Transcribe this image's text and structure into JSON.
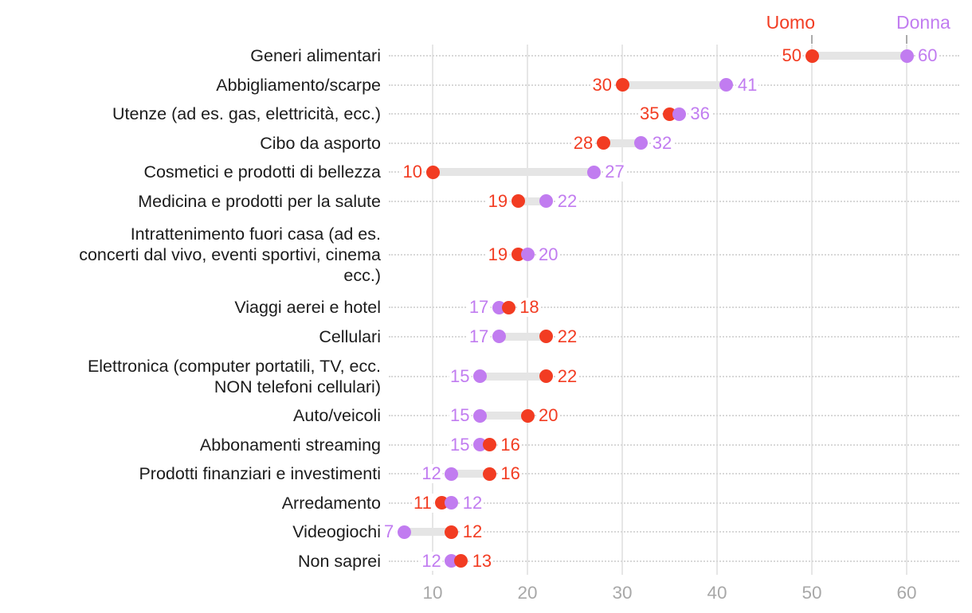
{
  "colors": {
    "uomo": "#f23c22",
    "donna": "#c17cf0",
    "gridline": "#e6e6e6",
    "dotted_line": "#d8d8d8",
    "connector": "#e5e5e5",
    "axis_text": "#a8a8a8",
    "category_text": "#1c1c1c",
    "leader": "#ababab",
    "background": "#ffffff"
  },
  "chart_data": {
    "type": "dumbbell",
    "title": "",
    "xlabel": "",
    "ylabel": "",
    "grid": "vertical-solid-plus-horizontal-dotted-row-guides",
    "legend_position": "top-right-above-first-row",
    "x_ticks": [
      10,
      20,
      30,
      40,
      50,
      60
    ],
    "xlim": [
      5,
      66
    ],
    "categories": [
      [
        "Generi alimentari"
      ],
      [
        "Abbigliamento/scarpe"
      ],
      [
        "Utenze (ad es. gas, elettricità, ecc.)"
      ],
      [
        "Cibo da asporto"
      ],
      [
        "Cosmetici e prodotti di bellezza"
      ],
      [
        "Medicina e prodotti per la salute"
      ],
      [
        "Intrattenimento fuori casa (ad es.",
        "concerti dal vivo, eventi sportivi, cinema",
        "ecc.)"
      ],
      [
        "Viaggi aerei e hotel"
      ],
      [
        "Cellulari"
      ],
      [
        "Elettronica (computer portatili, TV, ecc.",
        "NON telefoni cellulari)"
      ],
      [
        "Auto/veicoli"
      ],
      [
        "Abbonamenti streaming"
      ],
      [
        "Prodotti finanziari e investimenti"
      ],
      [
        "Arredamento"
      ],
      [
        "Videogiochi"
      ],
      [
        "Non saprei"
      ]
    ],
    "series": [
      {
        "name": "Uomo",
        "color": "#f23c22",
        "values": [
          50,
          30,
          35,
          28,
          10,
          19,
          19,
          18,
          22,
          22,
          20,
          16,
          16,
          11,
          12,
          13
        ]
      },
      {
        "name": "Donna",
        "color": "#c17cf0",
        "values": [
          60,
          41,
          36,
          32,
          27,
          22,
          20,
          17,
          17,
          15,
          15,
          15,
          12,
          12,
          7,
          12
        ]
      }
    ]
  }
}
